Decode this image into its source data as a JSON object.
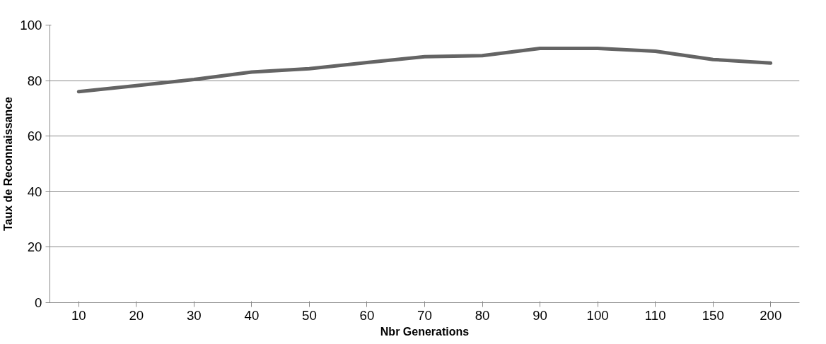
{
  "chart_data": {
    "type": "line",
    "xlabel": "Nbr Generations",
    "ylabel": "Taux de Reconnaissance",
    "categories": [
      "10",
      "20",
      "30",
      "40",
      "50",
      "60",
      "70",
      "80",
      "90",
      "100",
      "110",
      "150",
      "200"
    ],
    "series": [
      {
        "color": "#646464",
        "values": [
          76,
          78.2,
          80.4,
          83.1,
          84.3,
          86.5,
          88.6,
          89.0,
          91.6,
          91.6,
          90.6,
          87.6,
          86.3
        ]
      }
    ],
    "ylim": [
      0,
      100
    ],
    "yticks": [
      0,
      20,
      40,
      60,
      80,
      100
    ],
    "grid": "y",
    "marker": "none",
    "line_style": "solid"
  }
}
